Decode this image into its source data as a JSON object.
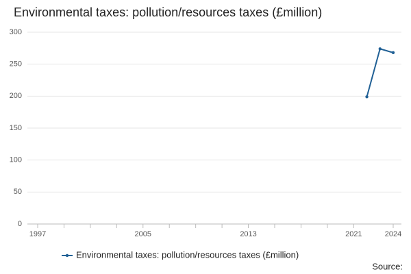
{
  "chart_data": {
    "type": "line",
    "title": "Environmental taxes: pollution/resources taxes (£million)",
    "x": [
      2022,
      2023,
      2024
    ],
    "series": [
      {
        "name": "Environmental taxes: pollution/resources taxes (£million)",
        "color": "#206095",
        "values": [
          199,
          274,
          268
        ]
      }
    ],
    "xlim": [
      1997,
      2024
    ],
    "xticks": [
      1997,
      2005,
      2013,
      2021,
      2024
    ],
    "xminor_ticks": [
      1999,
      2001,
      2003,
      2007,
      2009,
      2011,
      2015,
      2017,
      2019
    ],
    "ylim": [
      0,
      300
    ],
    "yticks": [
      0,
      50,
      100,
      150,
      200,
      250,
      300
    ],
    "grid": true,
    "legend": "bottom",
    "source": "Source:"
  }
}
